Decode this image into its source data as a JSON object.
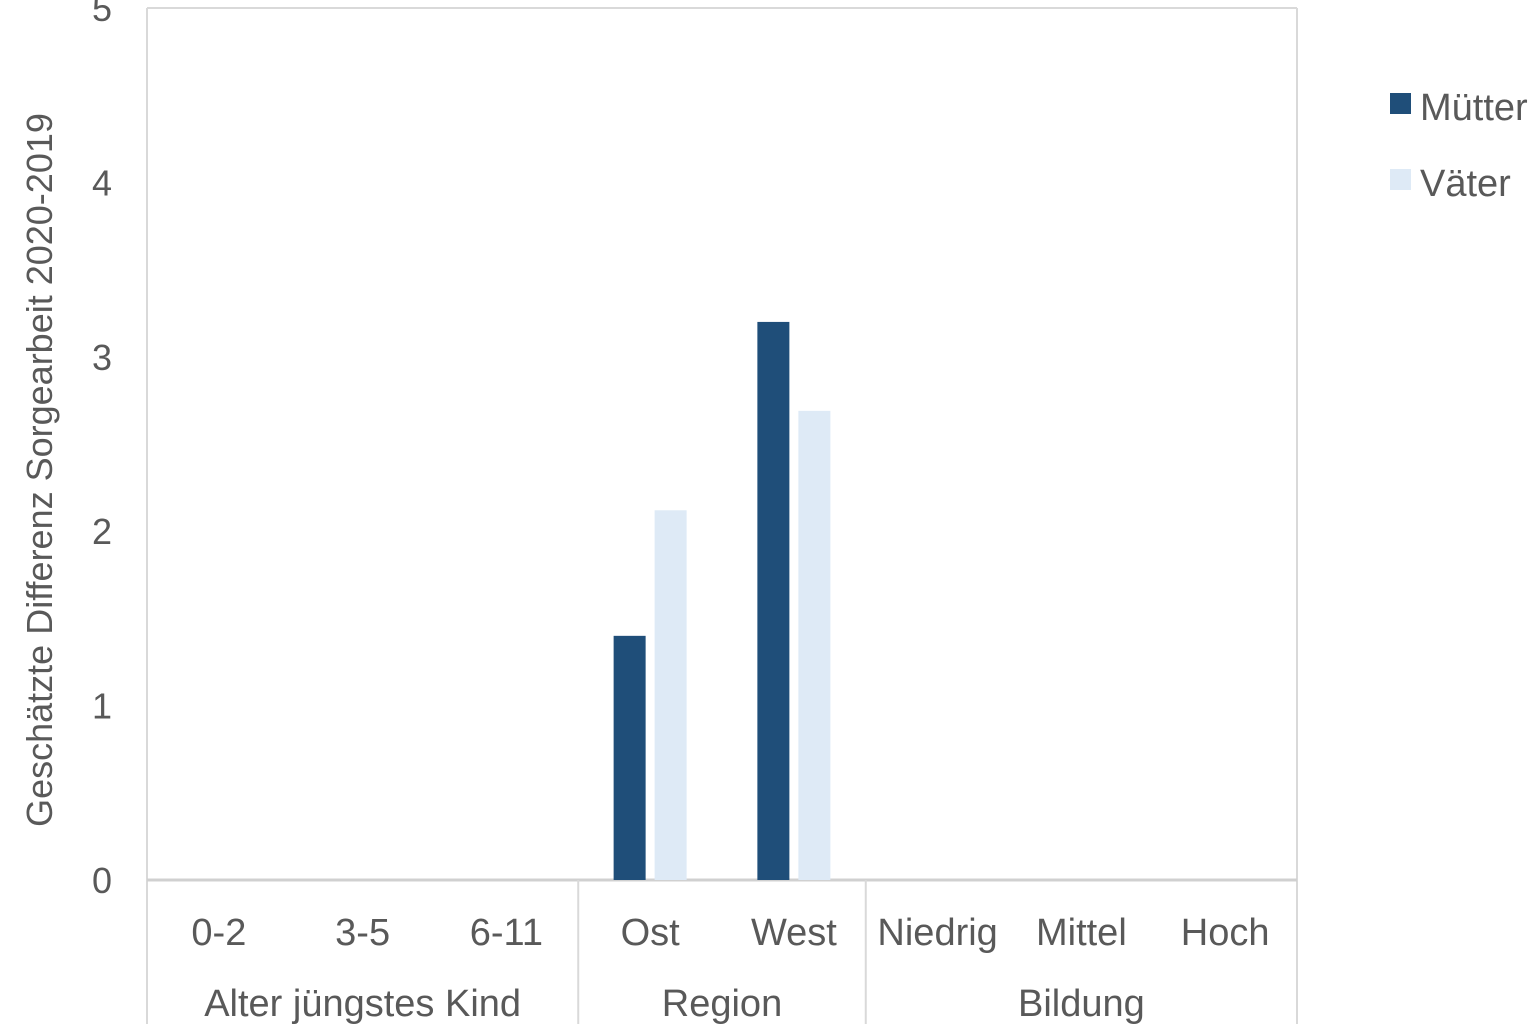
{
  "chart_data": {
    "type": "bar",
    "title": "",
    "ylabel": "Geschätzte Differenz Sorgearbeit 2020-2019",
    "ylim": [
      0,
      5
    ],
    "yticks": [
      0,
      1,
      2,
      3,
      4,
      5
    ],
    "grid": false,
    "legend_position": "top-right",
    "categories": [
      "0-2",
      "3-5",
      "6-11",
      "Ost",
      "West",
      "Niedrig",
      "Mittel",
      "Hoch"
    ],
    "groups": [
      {
        "label": "Alter jüngstes Kind",
        "categories": [
          "0-2",
          "3-5",
          "6-11"
        ]
      },
      {
        "label": "Region",
        "categories": [
          "Ost",
          "West"
        ]
      },
      {
        "label": "Bildung",
        "categories": [
          "Niedrig",
          "Mittel",
          "Hoch"
        ]
      }
    ],
    "series": [
      {
        "name": "Mütter",
        "color": "#1F4E79",
        "values": [
          0,
          0,
          0,
          1.4,
          3.2,
          0,
          0,
          0
        ]
      },
      {
        "name": "Väter",
        "color": "#DEEAF6",
        "values": [
          0,
          0,
          0,
          2.12,
          2.69,
          0,
          0,
          0
        ]
      }
    ]
  }
}
